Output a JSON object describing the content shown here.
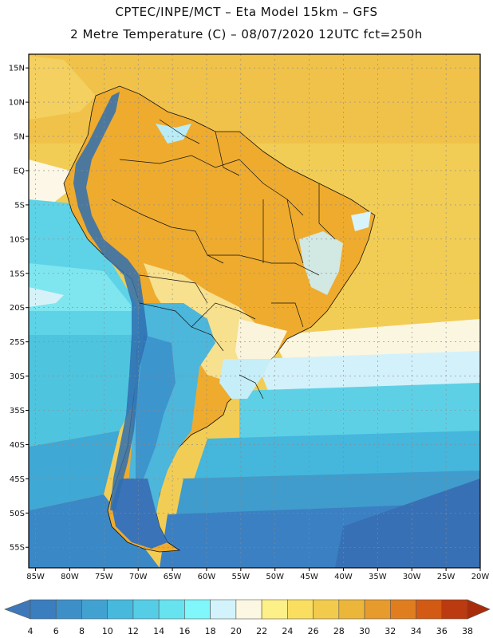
{
  "header": {
    "line1": "CPTEC/INPE/MCT –  Eta Model 15km – GFS",
    "line2": "2 Metre Temperature (C) – 08/07/2020 12UTC fct=250h"
  },
  "map": {
    "lon_range": [
      -86,
      -20
    ],
    "lat_range": [
      -58,
      17
    ],
    "lat_labels": [
      "15N",
      "10N",
      "5N",
      "EQ",
      "5S",
      "10S",
      "15S",
      "20S",
      "25S",
      "30S",
      "35S",
      "40S",
      "45S",
      "50S",
      "55S"
    ],
    "lat_values": [
      15,
      10,
      5,
      0,
      -5,
      -10,
      -15,
      -20,
      -25,
      -30,
      -35,
      -40,
      -45,
      -50,
      -55
    ],
    "lon_labels": [
      "85W",
      "80W",
      "75W",
      "70W",
      "65W",
      "60W",
      "55W",
      "50W",
      "45W",
      "40W",
      "35W",
      "30W",
      "25W",
      "20W"
    ],
    "lon_values": [
      -85,
      -80,
      -75,
      -70,
      -65,
      -60,
      -55,
      -50,
      -45,
      -40,
      -35,
      -30,
      -25,
      -20
    ]
  },
  "colorbar": {
    "levels": [
      "4",
      "6",
      "8",
      "10",
      "12",
      "14",
      "16",
      "18",
      "20",
      "22",
      "24",
      "26",
      "28",
      "30",
      "32",
      "34",
      "36",
      "38"
    ],
    "colors": [
      "#3f78b8",
      "#3a7ec0",
      "#3d8fc8",
      "#41a2d2",
      "#47b9dd",
      "#55cde6",
      "#66e3ef",
      "#7ff7fb",
      "#d2f3fb",
      "#fbf7e2",
      "#fdf088",
      "#f9de60",
      "#f3cb4c",
      "#ecb63a",
      "#e79b2c",
      "#e07e1f",
      "#d35a14",
      "#bb3a10",
      "#a82c0c"
    ]
  }
}
